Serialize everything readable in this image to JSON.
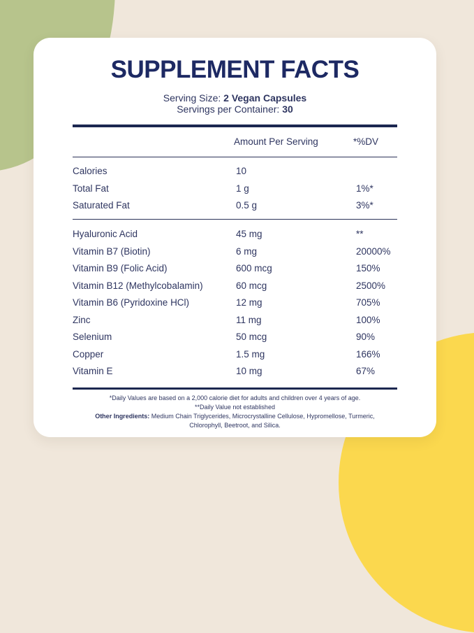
{
  "background": {
    "cream": "#f0e7db",
    "green_blob": "#b7c48c",
    "yellow_circle": "#fbd84e",
    "accent_navy": "#1d2963"
  },
  "card": {
    "title": "SUPPLEMENT FACTS",
    "serving_size_label": "Serving Size: ",
    "serving_size_value": "2 Vegan Capsules",
    "servings_per_container_label": "Servings per Container: ",
    "servings_per_container_value": "30",
    "columns": {
      "amount": "Amount Per Serving",
      "dv": "*%DV"
    },
    "sections": [
      {
        "rows": [
          {
            "name": "Calories",
            "amount": "10",
            "dv": ""
          },
          {
            "name": "Total Fat",
            "amount": "1 g",
            "dv": "1%*"
          },
          {
            "name": "Saturated Fat",
            "amount": "0.5 g",
            "dv": "3%*"
          }
        ]
      },
      {
        "rows": [
          {
            "name": "Hyaluronic Acid",
            "amount": "45 mg",
            "dv": "**"
          },
          {
            "name": "Vitamin B7 (Biotin)",
            "amount": "6 mg",
            "dv": "20000%"
          },
          {
            "name": "Vitamin B9 (Folic Acid)",
            "amount": "600 mcg",
            "dv": "150%"
          },
          {
            "name": "Vitamin B12 (Methylcobalamin)",
            "amount": "60 mcg",
            "dv": "2500%"
          },
          {
            "name": "Vitamin B6 (Pyridoxine HCl)",
            "amount": "12 mg",
            "dv": "705%"
          },
          {
            "name": "Zinc",
            "amount": "11 mg",
            "dv": "100%"
          },
          {
            "name": "Selenium",
            "amount": "50 mcg",
            "dv": "90%"
          },
          {
            "name": "Copper",
            "amount": "1.5 mg",
            "dv": "166%"
          },
          {
            "name": "Vitamin E",
            "amount": "10 mg",
            "dv": "67%"
          }
        ]
      }
    ],
    "footnotes": [
      "*Daily Values are based on a 2,000 calorie diet for adults and children over 4 years of age.",
      "**Daily Value not established"
    ],
    "other_ingredients_label": "Other Ingredients:",
    "other_ingredients_text": " Medium Chain Triglycerides, Microcrystalline Cellulose, Hypromellose, Turmeric, Chlorophyll, Beetroot, and Silica."
  }
}
